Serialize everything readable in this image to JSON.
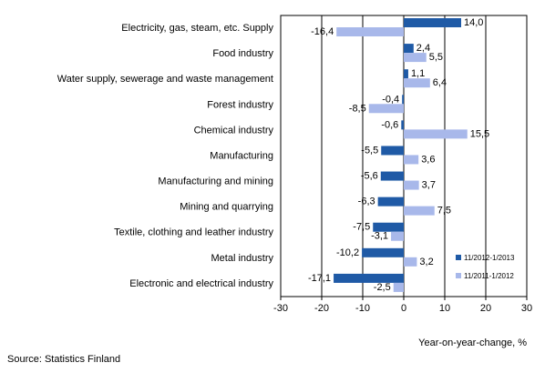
{
  "chart_data": {
    "type": "bar",
    "orientation": "horizontal",
    "categories": [
      "Electricity, gas, steam, etc. Supply",
      "Food industry",
      "Water supply, sewerage and waste management",
      "Forest industry",
      "Chemical industry",
      "Manufacturing",
      "Manufacturing and mining",
      "Mining and quarrying",
      "Textile, clothing and leather industry",
      "Metal industry",
      "Electronic and electrical industry"
    ],
    "series": [
      {
        "name": "11/2012-1/2013",
        "color": "#1f5aa6",
        "values": [
          14.0,
          2.4,
          1.1,
          -0.4,
          -0.6,
          -5.5,
          -5.6,
          -6.3,
          -7.5,
          -10.2,
          -17.1
        ],
        "labels": [
          "14,0",
          "2,4",
          "1,1",
          "-0,4",
          "-0,6",
          "-5,5",
          "-5,6",
          "-6,3",
          "-7,5",
          "-10,2",
          "-17,1"
        ]
      },
      {
        "name": "11/2011-1/2012",
        "color": "#a8b8ea",
        "values": [
          -16.4,
          5.5,
          6.4,
          -8.5,
          15.5,
          3.6,
          3.7,
          7.5,
          -3.1,
          3.2,
          -2.5
        ],
        "labels": [
          "-16,4",
          "5,5",
          "6,4",
          "-8,5",
          "15,5",
          "3,6",
          "3,7",
          "7,5",
          "-3,1",
          "3,2",
          "-2,5"
        ]
      }
    ],
    "xlim": [
      -30,
      30
    ],
    "xticks": [
      -30,
      -20,
      -10,
      0,
      10,
      20,
      30
    ],
    "xtick_labels": [
      "-30",
      "-20",
      "-10",
      "0",
      "10",
      "20",
      "30"
    ],
    "xlabel": "Year-on-year-change, %",
    "grid": "vertical",
    "legend_position": "bottom-right"
  },
  "source": "Source: Statistics Finland"
}
